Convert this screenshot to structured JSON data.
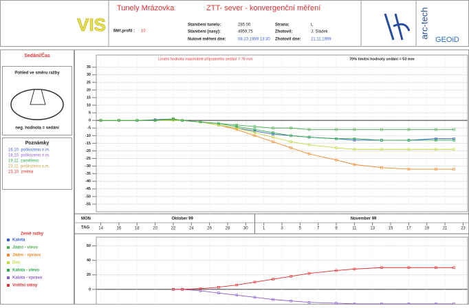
{
  "header": {
    "logo": "VIS",
    "title": "Tunely Mrázovka",
    "subtitle": "ZTT- sever - konvergenční měření",
    "profile_label": "Měř.profil :",
    "profile_value": "10",
    "fields": [
      [
        "Staničení tunelu:",
        "285 00"
      ],
      [
        "Staničení (nasy):",
        "4959,75"
      ],
      [
        "Nulové měření dne:",
        "08.10.1999 13:30"
      ],
      [
        "Strana:",
        "L"
      ],
      [
        "Zhotovil:",
        "J. Sládek"
      ],
      [
        "Zhotovil dne:",
        "21.11.1999"
      ]
    ],
    "logo_right_1": "arc-tech",
    "logo_right_2": "GEOiD"
  },
  "sidebar": {
    "title": "Sedání/Čas",
    "view_title": "Pohled ve směru ražby",
    "view_note": "neg. hodnota = sedání",
    "notes_title": "Poznámky",
    "notes": [
      "16.10. poškozeno n.m.",
      "18.10. poškozeno n.m.",
      "19.11. zaměřeno",
      "23.11. poškozeno n.m.",
      "23.10. změna"
    ],
    "legend_title": "Země ražby"
  },
  "x_axis": {
    "month_row": "MON",
    "day_row": "TAG",
    "months": [
      "Oktober 99",
      "November 99"
    ],
    "xticks": [
      {
        "value": 14,
        "label": "14"
      },
      {
        "value": 16,
        "label": "16"
      },
      {
        "value": 18,
        "label": "18"
      },
      {
        "value": 20,
        "label": "20"
      },
      {
        "value": 22,
        "label": "22"
      },
      {
        "value": 24,
        "label": "24"
      },
      {
        "value": 26,
        "label": "26"
      },
      {
        "value": 28,
        "label": "28"
      },
      {
        "value": 30,
        "label": "30"
      },
      {
        "value": 32,
        "label": "1"
      },
      {
        "value": 34,
        "label": "3"
      },
      {
        "value": 36,
        "label": "5"
      },
      {
        "value": 38,
        "label": "7"
      },
      {
        "value": 40,
        "label": "9"
      },
      {
        "value": 42,
        "label": "11"
      },
      {
        "value": 44,
        "label": "13"
      },
      {
        "value": 46,
        "label": "15"
      },
      {
        "value": 48,
        "label": "17"
      },
      {
        "value": 50,
        "label": "19"
      },
      {
        "value": 52,
        "label": "21"
      },
      {
        "value": 54,
        "label": "23"
      }
    ]
  },
  "chart_data": [
    {
      "type": "line",
      "annotation_left": "Limitní hodnota maximálně přípustného sedání = 76 mm",
      "annotation_right": "70% limitní hodnoty sedání = 53 mm",
      "x": [
        14,
        16,
        18,
        20,
        22,
        23,
        25,
        27,
        29,
        31,
        33,
        35,
        37,
        40,
        42,
        45,
        48,
        51,
        53
      ],
      "xlim": [
        13.5,
        54.5
      ],
      "ylim": [
        -60,
        43
      ],
      "yticks": [
        35,
        30,
        25,
        20,
        15,
        10,
        5,
        0,
        -5,
        -10,
        -15,
        -20,
        -25,
        -30,
        -35,
        -40,
        -45,
        -50,
        -55
      ],
      "grid": true,
      "series": [
        {
          "name": "Kalota",
          "color": "#3a5fcd",
          "values": [
            0,
            0,
            0,
            0.5,
            1,
            0,
            -1,
            -3,
            -5,
            -7,
            -9,
            -10,
            -11,
            -12,
            -13,
            -13,
            -13,
            -12,
            -12
          ]
        },
        {
          "name": "Jádro - vlevo",
          "color": "#4caf50",
          "values": [
            0,
            0,
            0,
            0,
            0.5,
            0,
            -1,
            -2,
            -3,
            -4,
            -5,
            -5,
            -6,
            -6,
            -6,
            -6,
            -6,
            -6,
            -6
          ]
        },
        {
          "name": "Jádro - vpravo",
          "color": "#f08a2a",
          "values": [
            0,
            0,
            0,
            0,
            1,
            0,
            -1,
            -3,
            -6,
            -10,
            -14,
            -18,
            -22,
            -26,
            -29,
            -31,
            -32,
            -32,
            -32
          ]
        },
        {
          "name": "Dno",
          "color": "#c8d840",
          "values": [
            0,
            0,
            0,
            0,
            0,
            0,
            -1,
            -3,
            -5,
            -8,
            -11,
            -14,
            -16,
            -18,
            -19,
            -19,
            -19,
            -19,
            -19
          ]
        },
        {
          "name": "Kalota - vlevo",
          "color": "#2aa84a",
          "values": [
            0,
            0,
            0,
            0,
            1,
            0,
            -1,
            -2,
            -4,
            -6,
            -8,
            -10,
            -11,
            -12,
            -12,
            -13,
            -13,
            -13,
            -13
          ]
        }
      ]
    },
    {
      "type": "line",
      "x": [
        22,
        23,
        25,
        27,
        29,
        31,
        33,
        35,
        37,
        40,
        42,
        45,
        48,
        51,
        53
      ],
      "xlim": [
        13.5,
        54.5
      ],
      "ylim": [
        -21,
        72
      ],
      "yticks": [
        0,
        20,
        40,
        60
      ],
      "grid": true,
      "series": [
        {
          "name": "Kalota - vpravo",
          "color": "#8a5fc8",
          "values": [
            0,
            0,
            -2,
            -5,
            -8,
            -11,
            -14,
            -16,
            -18,
            -19,
            -20,
            -20,
            -20,
            -20,
            -20
          ]
        },
        {
          "name": "Vnitřní stěny",
          "color": "#e03030",
          "values": [
            0,
            0,
            1,
            3,
            6,
            10,
            14,
            18,
            22,
            26,
            28,
            30,
            30,
            30,
            30
          ]
        }
      ]
    }
  ]
}
